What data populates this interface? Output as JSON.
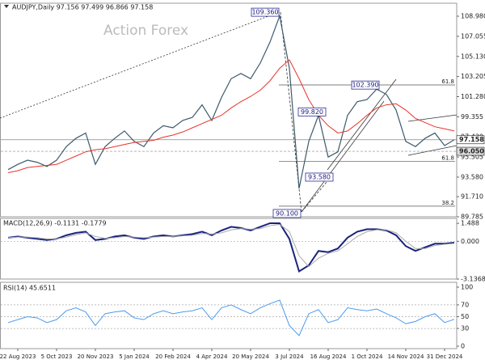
{
  "chart_data": [
    {
      "type": "line",
      "title": "AUDJPY,Daily 97.156 97.499 96.866 97.158",
      "watermark": "Action Forex",
      "ylim": [
        89.785,
        110.22
      ],
      "yticks": [
        {
          "value": 108.98,
          "label": "108.980"
        },
        {
          "value": 107.055,
          "label": "107.055"
        },
        {
          "value": 105.13,
          "label": "105.130"
        },
        {
          "value": 103.205,
          "label": "103.205"
        },
        {
          "value": 101.28,
          "label": "101.280"
        },
        {
          "value": 99.355,
          "label": "99.355"
        },
        {
          "value": 97.43,
          "label": "97.430"
        },
        {
          "value": 95.505,
          "label": "95.505"
        },
        {
          "value": 93.58,
          "label": "93.580"
        },
        {
          "value": 91.71,
          "label": "91.710"
        },
        {
          "value": 89.785,
          "label": "89.785"
        }
      ],
      "series": [
        {
          "color": "#3d5a6c",
          "values": [
            94.3,
            94.8,
            95.2,
            95.0,
            94.6,
            95.2,
            96.5,
            97.3,
            97.8,
            94.8,
            96.5,
            97.3,
            98.0,
            97.0,
            96.5,
            97.8,
            98.5,
            98.3,
            99.0,
            99.3,
            100.5,
            99.0,
            101.2,
            103.0,
            103.5,
            103.0,
            104.5,
            106.5,
            109.0,
            104.0,
            92.5,
            97.0,
            99.5,
            95.5,
            96.0,
            99.5,
            100.8,
            101.0,
            102.0,
            101.5,
            100.0,
            97.0,
            96.5,
            97.3,
            97.8,
            96.6,
            97.158
          ]
        },
        {
          "color": "#e8342c",
          "values": [
            94.0,
            94.2,
            94.5,
            94.6,
            94.7,
            94.8,
            95.2,
            95.6,
            96.0,
            96.2,
            96.3,
            96.5,
            96.7,
            96.9,
            97.0,
            97.1,
            97.4,
            97.6,
            97.9,
            98.3,
            98.7,
            99.1,
            99.5,
            100.2,
            100.8,
            101.3,
            101.9,
            102.8,
            104.0,
            104.8,
            103.0,
            101.0,
            99.5,
            98.5,
            97.8,
            98.0,
            98.7,
            99.5,
            100.2,
            100.5,
            100.6,
            100.0,
            99.2,
            98.8,
            98.4,
            98.2,
            98.0
          ]
        }
      ],
      "annotations": [
        {
          "text": "109.360",
          "value": 109.36
        },
        {
          "text": "102.390",
          "value": 102.39
        },
        {
          "text": "99.820",
          "value": 99.82
        },
        {
          "text": "93.580",
          "value": 93.58
        },
        {
          "text": "90.100",
          "value": 90.1
        }
      ],
      "levels": [
        {
          "label": "61.8",
          "value": 102.4
        },
        {
          "label": "61.8",
          "value": 95.1
        },
        {
          "label": "38.2",
          "value": 90.8
        }
      ],
      "price_labels": [
        {
          "label": "97.158",
          "value": 97.158
        },
        {
          "label": "96.050",
          "value": 96.05
        }
      ]
    },
    {
      "type": "line",
      "title": "MACD(12,26,9) -0.1131 -0.1779",
      "ylim": [
        -3.1368,
        1.9
      ],
      "yticks": [
        1.488,
        {
          "value": 0,
          "label": "0.000"
        },
        -3.1368
      ],
      "grid": true,
      "series": [
        {
          "color": "#1a237e",
          "values": [
            0.3,
            0.4,
            0.3,
            0.2,
            0.1,
            0.2,
            0.5,
            0.7,
            0.8,
            0.1,
            0.2,
            0.4,
            0.5,
            0.3,
            0.2,
            0.4,
            0.5,
            0.4,
            0.5,
            0.6,
            0.8,
            0.5,
            0.9,
            1.2,
            1.1,
            0.9,
            1.2,
            1.5,
            1.5,
            0.2,
            -2.5,
            -2.0,
            -0.8,
            -0.9,
            -0.6,
            0.3,
            0.8,
            1.0,
            1.0,
            0.9,
            0.5,
            -0.4,
            -0.8,
            -0.5,
            -0.2,
            -0.2,
            -0.1131
          ]
        },
        {
          "color": "#aaaaaa",
          "values": [
            0.3,
            0.35,
            0.35,
            0.3,
            0.2,
            0.2,
            0.35,
            0.55,
            0.7,
            0.4,
            0.25,
            0.3,
            0.4,
            0.35,
            0.3,
            0.35,
            0.4,
            0.4,
            0.45,
            0.5,
            0.65,
            0.6,
            0.7,
            0.95,
            1.05,
            1.0,
            1.05,
            1.3,
            1.4,
            0.8,
            -1.2,
            -2.1,
            -1.4,
            -1.0,
            -0.8,
            -0.2,
            0.4,
            0.8,
            0.95,
            0.95,
            0.7,
            0.0,
            -0.6,
            -0.6,
            -0.35,
            -0.25,
            -0.1779
          ]
        }
      ]
    },
    {
      "type": "line",
      "title": "RSI(14) 45.6511",
      "ylim": [
        0,
        100
      ],
      "yticks": [
        100,
        70,
        50,
        30,
        0
      ],
      "grid": true,
      "categories": [
        null,
        "22 Aug 2023",
        null,
        null,
        null,
        "5 Oct 2023",
        null,
        null,
        null,
        "20 Nov 2023",
        null,
        null,
        null,
        "5 Jan 2024",
        null,
        null,
        null,
        "20 Feb 2024",
        null,
        null,
        null,
        "4 Apr 2024",
        null,
        null,
        null,
        "20 May 2024",
        null,
        null,
        null,
        "3 Jul 2024",
        null,
        null,
        null,
        "16 Aug 2024",
        null,
        null,
        null,
        "1 Oct 2024",
        null,
        null,
        null,
        "14 Nov 2024",
        null,
        null,
        null,
        "31 Dec 2024",
        null
      ],
      "series": [
        {
          "color": "#4a9cf0",
          "values": [
            40,
            45,
            50,
            48,
            40,
            45,
            60,
            65,
            58,
            35,
            55,
            58,
            60,
            48,
            45,
            55,
            60,
            55,
            58,
            60,
            65,
            45,
            65,
            70,
            62,
            55,
            65,
            72,
            78,
            35,
            18,
            55,
            62,
            40,
            45,
            65,
            62,
            60,
            63,
            55,
            48,
            38,
            42,
            50,
            55,
            40,
            45.6511
          ]
        }
      ]
    }
  ]
}
